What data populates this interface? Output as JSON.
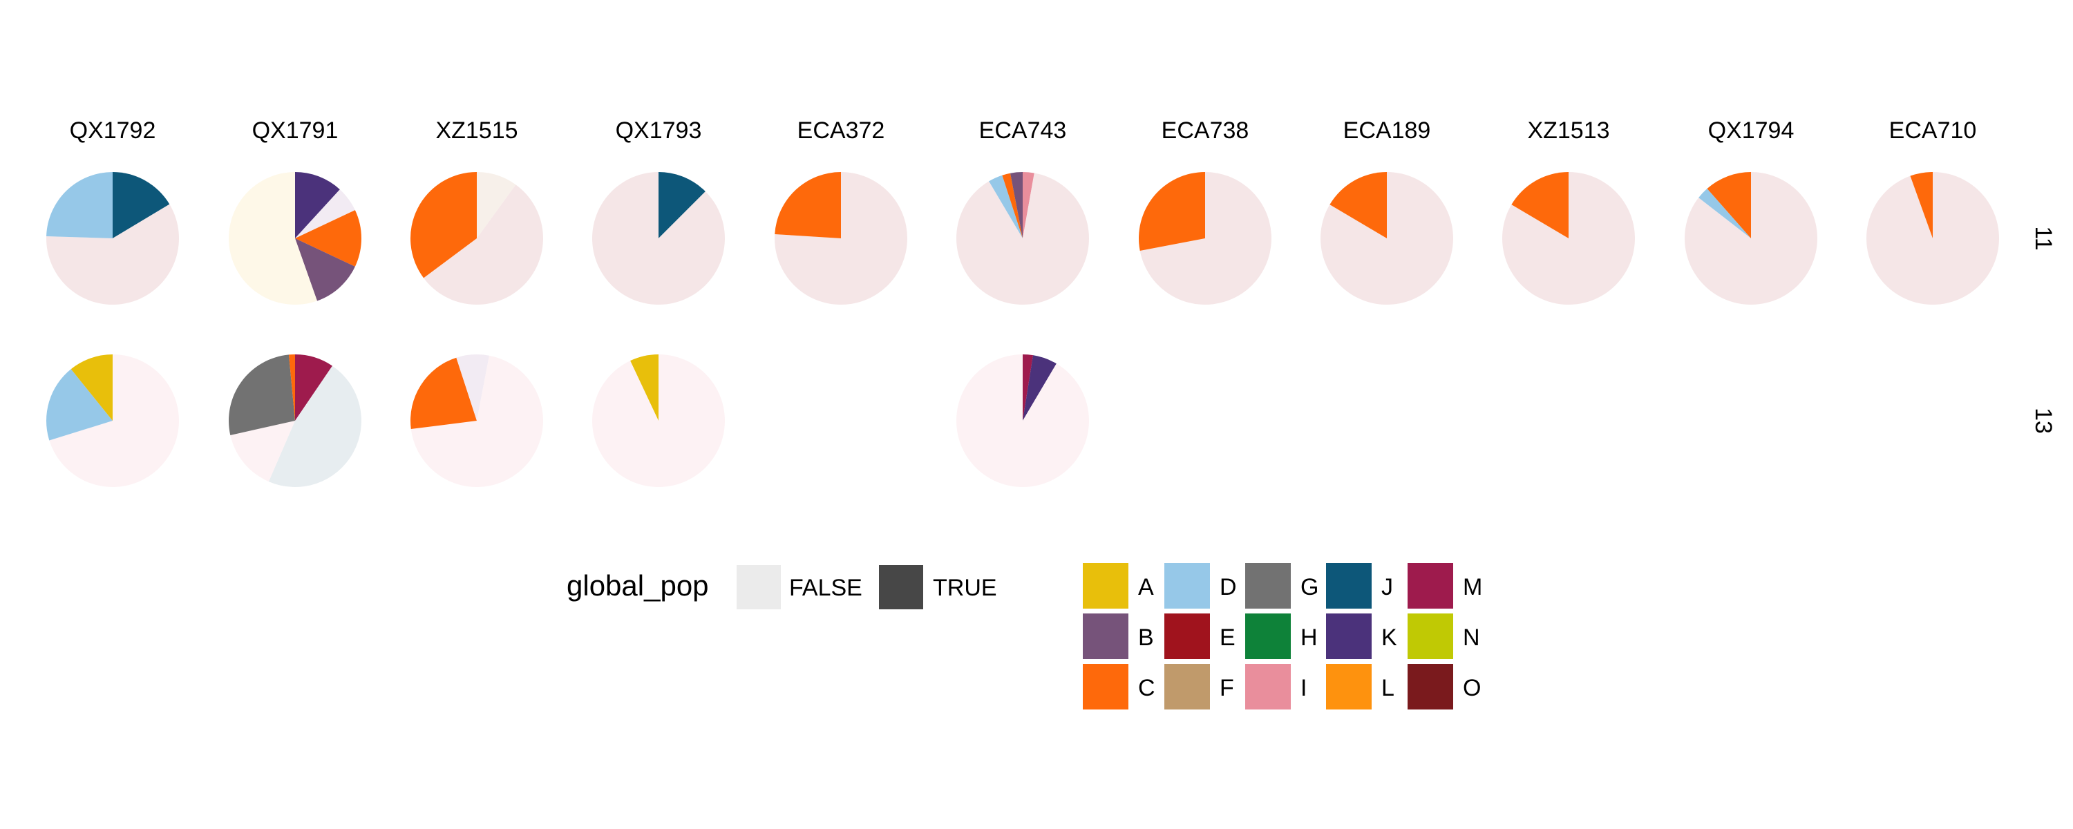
{
  "chart_data": {
    "type": "pie",
    "columns": [
      "QX1792",
      "QX1791",
      "XZ1515",
      "QX1793",
      "ECA372",
      "ECA743",
      "ECA738",
      "ECA189",
      "XZ1513",
      "QX1794",
      "ECA710"
    ],
    "rows": [
      "11",
      "13"
    ],
    "facets": [
      {
        "column": "QX1792",
        "row": "11",
        "slices": [
          {
            "group": "J",
            "value": 0.164
          },
          {
            "group": "",
            "value": 0.591
          },
          {
            "group": "D",
            "value": 0.245
          }
        ]
      },
      {
        "column": "QX1791",
        "row": "11",
        "slices": [
          {
            "group": "K",
            "value": 0.118
          },
          {
            "group": "",
            "value": 0.062
          },
          {
            "group": "C",
            "value": 0.14
          },
          {
            "group": "B",
            "value": 0.126
          },
          {
            "group": "",
            "value": 0.554
          }
        ]
      },
      {
        "column": "XZ1515",
        "row": "11",
        "slices": [
          {
            "group": "",
            "value": 0.1
          },
          {
            "group": "",
            "value": 0.548
          },
          {
            "group": "C",
            "value": 0.352
          }
        ]
      },
      {
        "column": "QX1793",
        "row": "11",
        "slices": [
          {
            "group": "J",
            "value": 0.125
          },
          {
            "group": "",
            "value": 0.875
          }
        ]
      },
      {
        "column": "ECA372",
        "row": "11",
        "slices": [
          {
            "group": "",
            "value": 0.76
          },
          {
            "group": "C",
            "value": 0.24
          }
        ]
      },
      {
        "column": "ECA743",
        "row": "11",
        "slices": [
          {
            "group": "I",
            "value": 0.028
          },
          {
            "group": "",
            "value": 0.887
          },
          {
            "group": "D",
            "value": 0.035
          },
          {
            "group": "C",
            "value": 0.02
          },
          {
            "group": "B",
            "value": 0.03
          }
        ]
      },
      {
        "column": "ECA738",
        "row": "11",
        "slices": [
          {
            "group": "",
            "value": 0.72
          },
          {
            "group": "C",
            "value": 0.28
          }
        ]
      },
      {
        "column": "ECA189",
        "row": "11",
        "slices": [
          {
            "group": "",
            "value": 0.835
          },
          {
            "group": "C",
            "value": 0.165
          }
        ]
      },
      {
        "column": "XZ1513",
        "row": "11",
        "slices": [
          {
            "group": "",
            "value": 0.835
          },
          {
            "group": "C",
            "value": 0.165
          }
        ]
      },
      {
        "column": "QX1794",
        "row": "11",
        "slices": [
          {
            "group": "",
            "value": 0.855
          },
          {
            "group": "D",
            "value": 0.03
          },
          {
            "group": "C",
            "value": 0.115
          }
        ]
      },
      {
        "column": "ECA710",
        "row": "11",
        "slices": [
          {
            "group": "",
            "value": 0.945
          },
          {
            "group": "C",
            "value": 0.055
          }
        ]
      },
      {
        "column": "QX1792",
        "row": "13",
        "slices": [
          {
            "group": "",
            "value": 0.702
          },
          {
            "group": "D",
            "value": 0.19
          },
          {
            "group": "A",
            "value": 0.108
          }
        ]
      },
      {
        "column": "QX1791",
        "row": "13",
        "slices": [
          {
            "group": "M",
            "value": 0.095
          },
          {
            "group": "",
            "value": 0.47
          },
          {
            "group": "",
            "value": 0.15
          },
          {
            "group": "G",
            "value": 0.27
          },
          {
            "group": "C",
            "value": 0.015
          }
        ]
      },
      {
        "column": "XZ1515",
        "row": "13",
        "slices": [
          {
            "group": "",
            "value": 0.03
          },
          {
            "group": "",
            "value": 0.7
          },
          {
            "group": "C",
            "value": 0.22
          },
          {
            "group": "",
            "value": 0.05
          }
        ]
      },
      {
        "column": "QX1793",
        "row": "13",
        "slices": [
          {
            "group": "",
            "value": 0.93
          },
          {
            "group": "A",
            "value": 0.07
          }
        ]
      },
      {
        "column": "ECA743",
        "row": "13",
        "slices": [
          {
            "group": "M",
            "value": 0.025
          },
          {
            "group": "K",
            "value": 0.06
          },
          {
            "group": "",
            "value": 0.915
          }
        ]
      }
    ],
    "legends": [
      {
        "title": "global_pop",
        "entries": [
          {
            "label": "FALSE",
            "color": "#ebebeb"
          },
          {
            "label": "TRUE",
            "color": "#474747"
          }
        ]
      },
      {
        "title": "",
        "entries": [
          {
            "label": "A",
            "color": "#e8bf0b"
          },
          {
            "label": "B",
            "color": "#76537a"
          },
          {
            "label": "C",
            "color": "#fe690b"
          },
          {
            "label": "D",
            "color": "#96c8e8"
          },
          {
            "label": "E",
            "color": "#a0131d"
          },
          {
            "label": "F",
            "color": "#c09a6b"
          },
          {
            "label": "G",
            "color": "#727272"
          },
          {
            "label": "H",
            "color": "#0e8239"
          },
          {
            "label": "I",
            "color": "#e98e9c"
          },
          {
            "label": "J",
            "color": "#0d5779"
          },
          {
            "label": "K",
            "color": "#4b327b"
          },
          {
            "label": "L",
            "color": "#fe920e"
          },
          {
            "label": "M",
            "color": "#9e1b4d"
          },
          {
            "label": "N",
            "color": "#c0c904"
          },
          {
            "label": "O",
            "color": "#7a1a1d"
          }
        ]
      }
    ],
    "background_colors": {
      "row11": "#f5e6e7",
      "row13": "#fdf2f4",
      "cream": "#fef8e8",
      "pale_blue": "#e7edf0",
      "pale_lilac": "#f2ebf3",
      "light_peach": "#f7f0ea"
    },
    "legend_placement": "bottom"
  }
}
